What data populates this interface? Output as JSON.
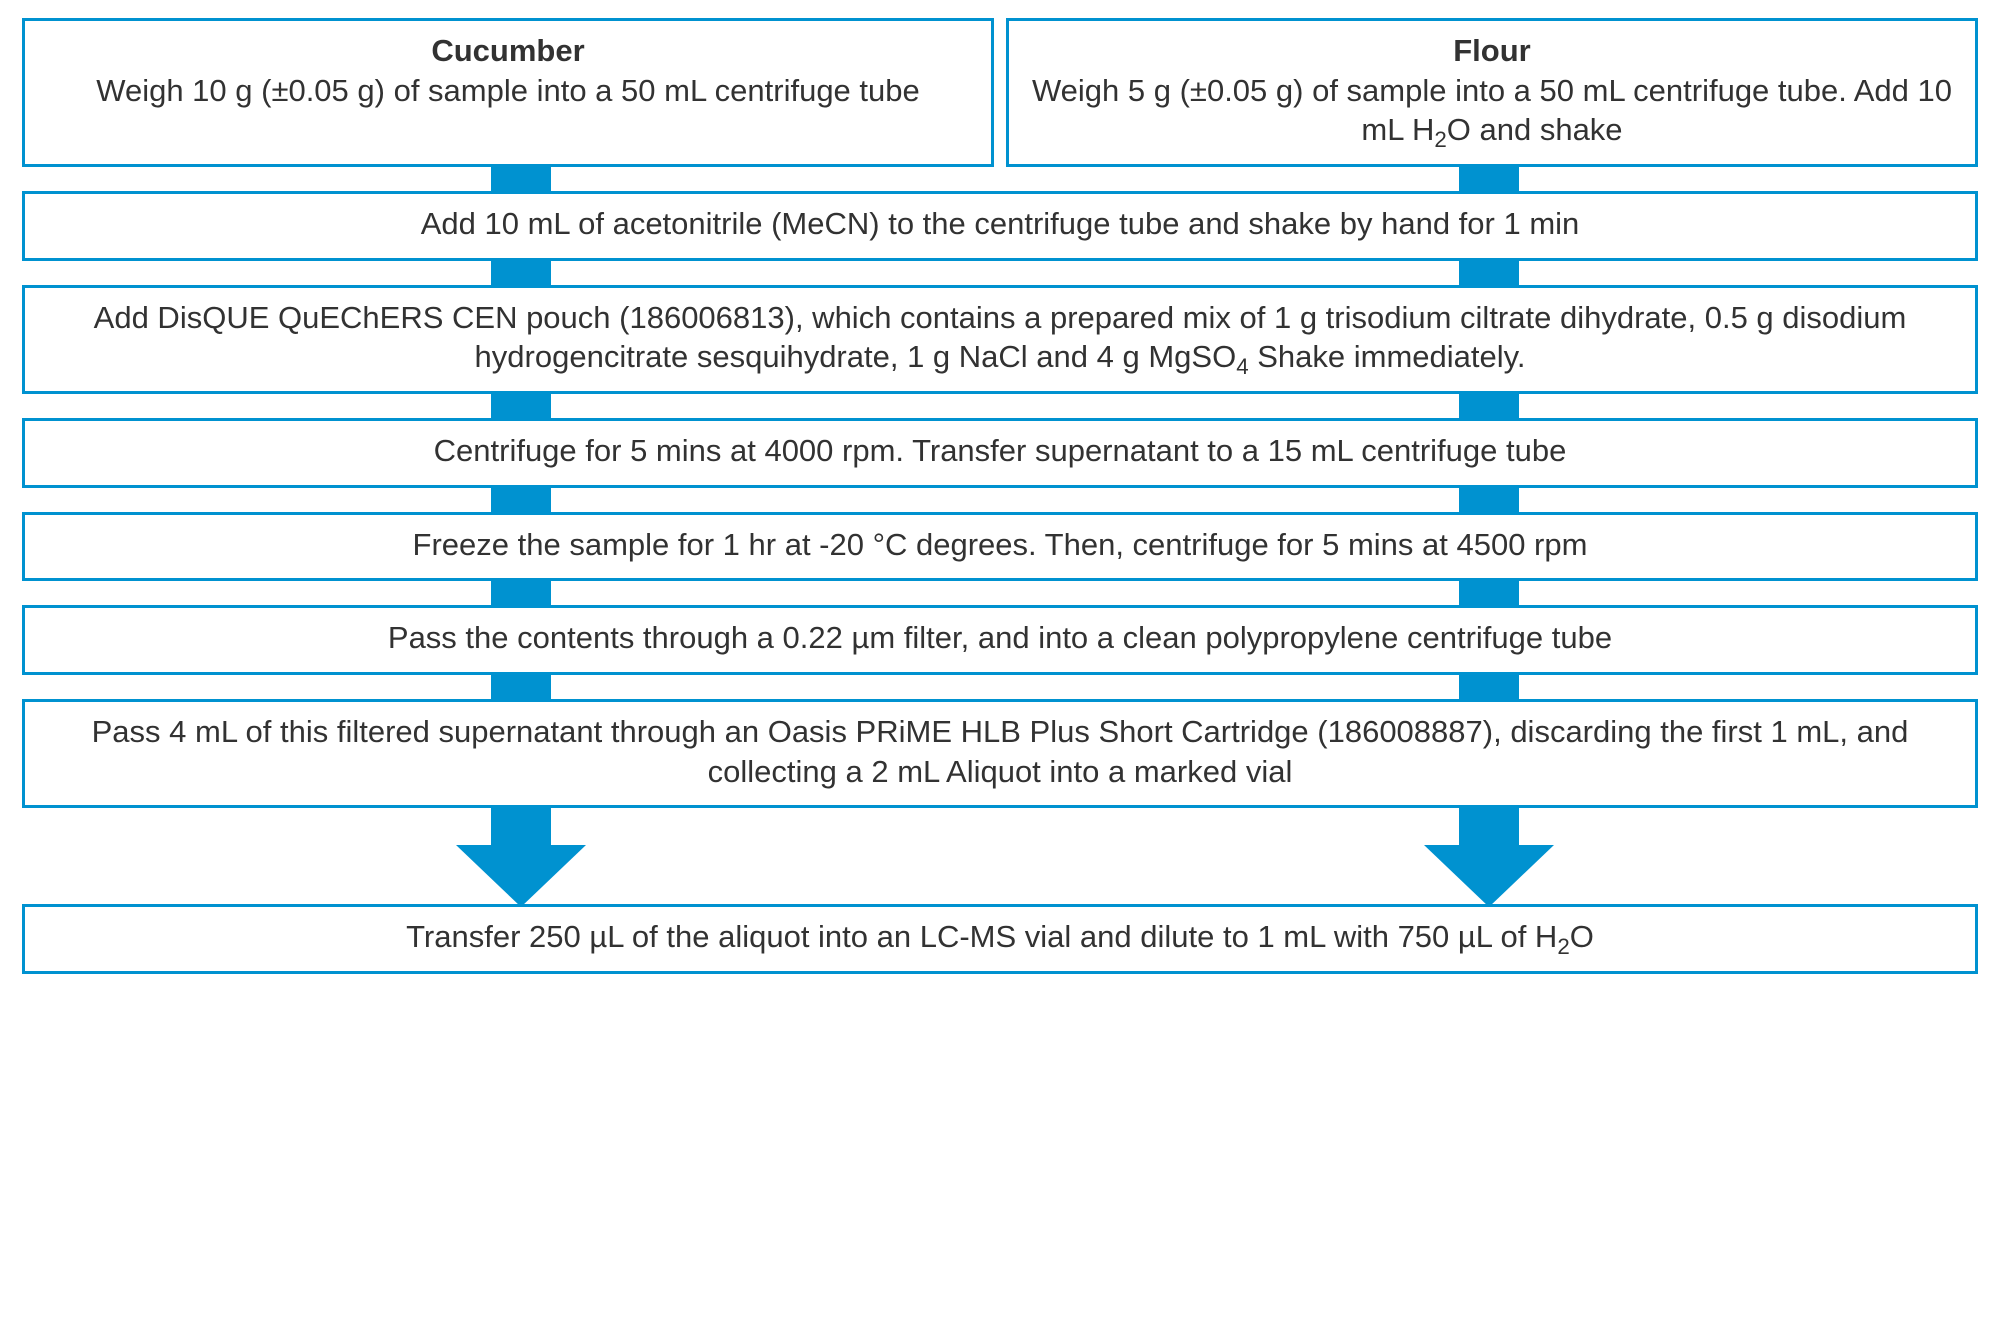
{
  "flowchart": {
    "type": "flowchart",
    "border_color": "#0092d0",
    "arrow_color": "#0092d0",
    "text_color": "#323232",
    "background_color": "#ffffff",
    "font_size_pt": 23,
    "arrow_positions_pct": [
      25.5,
      75.0
    ],
    "top_left": {
      "title": "Cucumber",
      "body": "Weigh 10 g (±0.05 g) of sample into a 50 mL centrifuge tube"
    },
    "top_right": {
      "title": "Flour",
      "body_html": "Weigh 5 g (±0.05 g) of sample into a 50 mL centrifuge tube. Add 10 mL H<sub>2</sub>O and shake"
    },
    "steps": [
      {
        "text": "Add 10 mL of acetonitrile (MeCN) to the centrifuge tube and shake by hand for 1 min"
      },
      {
        "text_html": "Add DisQUE QuEChERS CEN pouch (186006813), which contains a prepared mix of 1 g trisodium ciltrate dihydrate, 0.5 g disodium hydrogencitrate sesquihydrate, 1 g NaCl and 4 g MgSO<sub>4</sub> Shake immediately."
      },
      {
        "text": "Centrifuge for 5 mins at 4000 rpm. Transfer supernatant to a 15 mL centrifuge tube"
      },
      {
        "text": "Freeze the sample for 1 hr at -20 °C degrees. Then, centrifuge for 5 mins at 4500 rpm"
      },
      {
        "text": "Pass the contents through a 0.22 µm filter, and into a clean polypropylene centrifuge tube"
      },
      {
        "text": "Pass 4 mL of this filtered supernatant through an Oasis PRiME HLB Plus Short Cartridge (186008887), discarding the first 1 mL, and collecting a 2 mL Aliquot into a marked vial"
      }
    ],
    "final_step": {
      "text_html": "Transfer 250 µL of the aliquot into an LC-MS vial and dilute to 1 mL with 750 µL of H<sub>2</sub>O"
    }
  }
}
